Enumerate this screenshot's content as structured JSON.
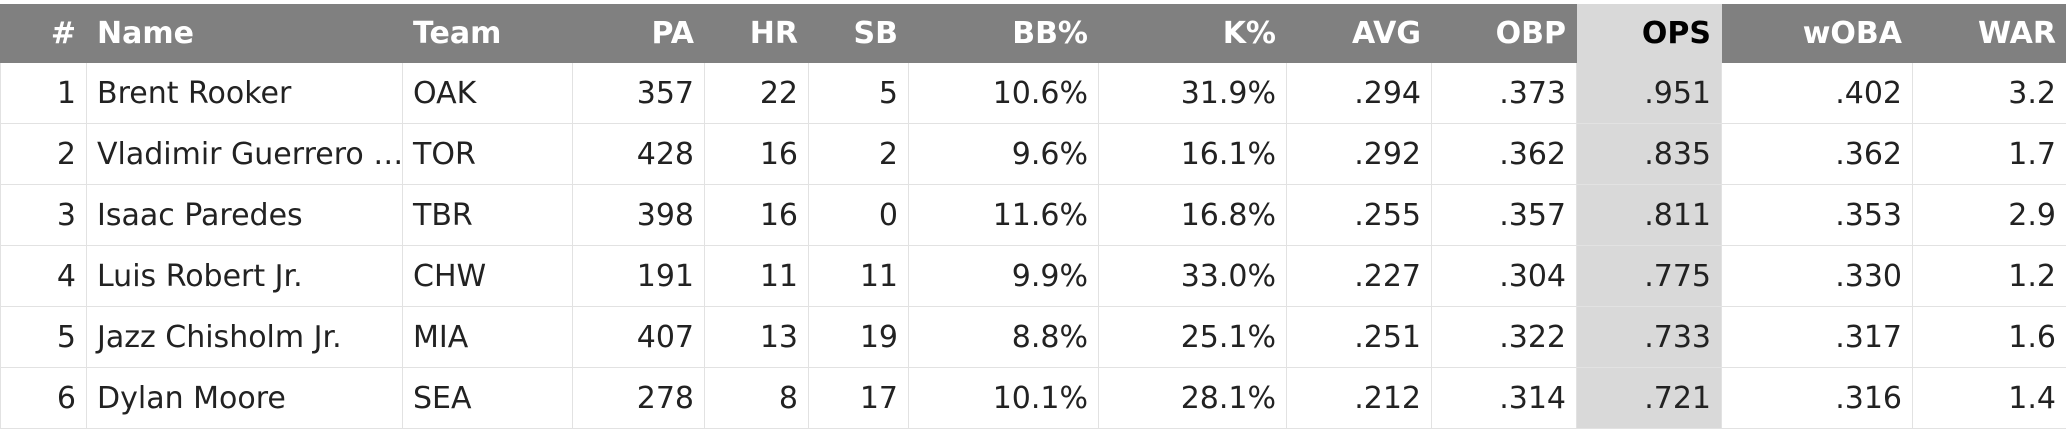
{
  "table": {
    "header": [
      "#",
      "Name",
      "Team",
      "PA",
      "HR",
      "SB",
      "BB%",
      "K%",
      "AVG",
      "OBP",
      "OPS",
      "wOBA",
      "WAR"
    ],
    "rows": [
      [
        "1",
        "Brent Rooker",
        "OAK",
        "357",
        "22",
        "5",
        "10.6%",
        "31.9%",
        ".294",
        ".373",
        ".951",
        ".402",
        "3.2"
      ],
      [
        "2",
        "Vladimir Guerrero …",
        "TOR",
        "428",
        "16",
        "2",
        "9.6%",
        "16.1%",
        ".292",
        ".362",
        ".835",
        ".362",
        "1.7"
      ],
      [
        "3",
        "Isaac Paredes",
        "TBR",
        "398",
        "16",
        "0",
        "11.6%",
        "16.8%",
        ".255",
        ".357",
        ".811",
        ".353",
        "2.9"
      ],
      [
        "4",
        "Luis Robert Jr.",
        "CHW",
        "191",
        "11",
        "11",
        "9.9%",
        "33.0%",
        ".227",
        ".304",
        ".775",
        ".330",
        "1.2"
      ],
      [
        "5",
        "Jazz Chisholm Jr.",
        "MIA",
        "407",
        "13",
        "19",
        "8.8%",
        "25.1%",
        ".251",
        ".322",
        ".733",
        ".317",
        "1.6"
      ],
      [
        "6",
        "Dylan Moore",
        "SEA",
        "278",
        "8",
        "17",
        "10.1%",
        "28.1%",
        ".212",
        ".314",
        ".721",
        ".316",
        "1.4"
      ]
    ]
  }
}
